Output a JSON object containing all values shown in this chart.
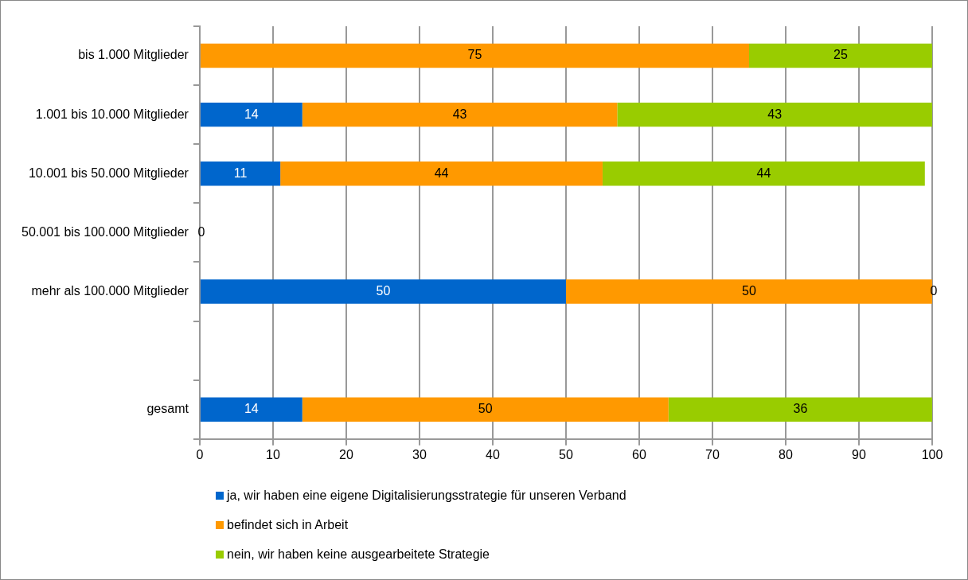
{
  "chart_data": {
    "type": "bar",
    "orientation": "horizontal",
    "stacked": true,
    "categories": [
      "bis 1.000 Mitglieder",
      "1.001 bis 10.000 Mitglieder",
      "10.001 bis 50.000 Mitglieder",
      "50.001 bis 100.000 Mitglieder",
      "mehr als 100.000 Mitglieder",
      null,
      "gesamt"
    ],
    "series": [
      {
        "name": "ja, wir haben eine eigene Digitalisierungsstrategie für unseren Verband",
        "color": "#0066cc",
        "values": [
          0,
          14,
          11,
          0,
          50,
          null,
          14
        ],
        "value_labels": [
          null,
          "14",
          "11",
          null,
          "50",
          null,
          "14"
        ]
      },
      {
        "name": "befindet sich in Arbeit",
        "color": "#ff9900",
        "values": [
          75,
          43,
          44,
          0,
          50,
          null,
          50
        ],
        "value_labels": [
          "75",
          "43",
          "44",
          null,
          "50",
          null,
          "50"
        ]
      },
      {
        "name": "nein, wir haben keine ausgearbeitete Strategie",
        "color": "#99cc00",
        "values": [
          25,
          43,
          44,
          0,
          0,
          null,
          36
        ],
        "value_labels": [
          "25",
          "43",
          "44",
          "0",
          "0",
          null,
          "36"
        ]
      }
    ],
    "xlim": [
      0,
      100
    ],
    "xticks": [
      0,
      10,
      20,
      30,
      40,
      50,
      60,
      70,
      80,
      90,
      100
    ],
    "grid": "x",
    "legend": "bottom"
  }
}
